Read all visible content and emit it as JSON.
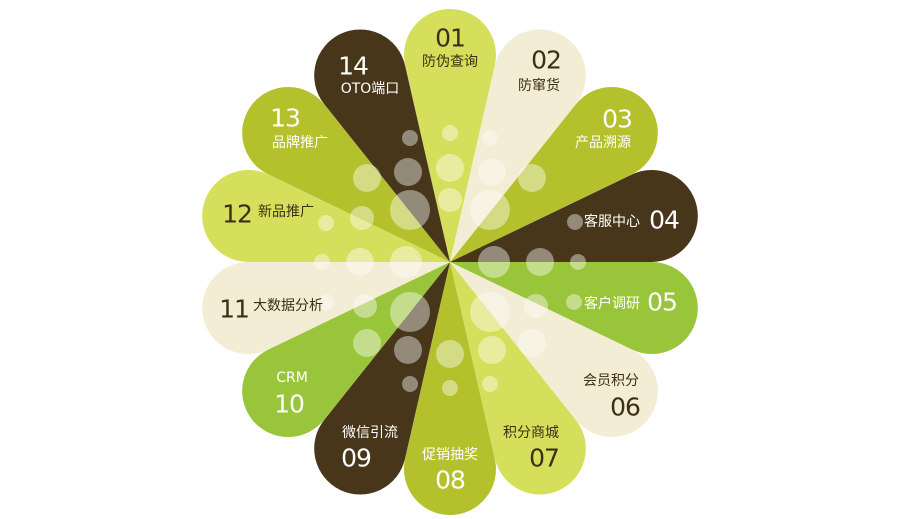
{
  "colors": {
    "dark_brown": "#47361a",
    "light_lime": "#d6df5b",
    "lime": "#b4c12c",
    "green": "#99c53a",
    "cream": "#f2edd4",
    "text_dark": "#3d2f14",
    "text_light": "#ffffff"
  },
  "petals": [
    {
      "number": "01",
      "label": "防伪查询",
      "color": "#d6df5b",
      "text": "#3d2f14"
    },
    {
      "number": "02",
      "label": "防窜货",
      "color": "#f2edd4",
      "text": "#3d2f14"
    },
    {
      "number": "03",
      "label": "产品溯源",
      "color": "#b4c12c",
      "text": "#ffffff"
    },
    {
      "number": "04",
      "label": "客服中心",
      "color": "#47361a",
      "text": "#ffffff"
    },
    {
      "number": "05",
      "label": "客户调研",
      "color": "#99c53a",
      "text": "#ffffff"
    },
    {
      "number": "06",
      "label": "会员积分",
      "color": "#f2edd4",
      "text": "#3d2f14"
    },
    {
      "number": "07",
      "label": "积分商城",
      "color": "#d6df5b",
      "text": "#3d2f14"
    },
    {
      "number": "08",
      "label": "促销抽奖",
      "color": "#b4c12c",
      "text": "#ffffff"
    },
    {
      "number": "09",
      "label": "微信引流",
      "color": "#47361a",
      "text": "#ffffff"
    },
    {
      "number": "10",
      "label": "CRM",
      "color": "#99c53a",
      "text": "#ffffff"
    },
    {
      "number": "11",
      "label": "大数据分析",
      "color": "#f2edd4",
      "text": "#3d2f14"
    },
    {
      "number": "12",
      "label": "新品推广",
      "color": "#d6df5b",
      "text": "#3d2f14"
    },
    {
      "number": "13",
      "label": "品牌推广",
      "color": "#b4c12c",
      "text": "#ffffff"
    },
    {
      "number": "14",
      "label": "OTO端口",
      "color": "#47361a",
      "text": "#ffffff"
    }
  ]
}
